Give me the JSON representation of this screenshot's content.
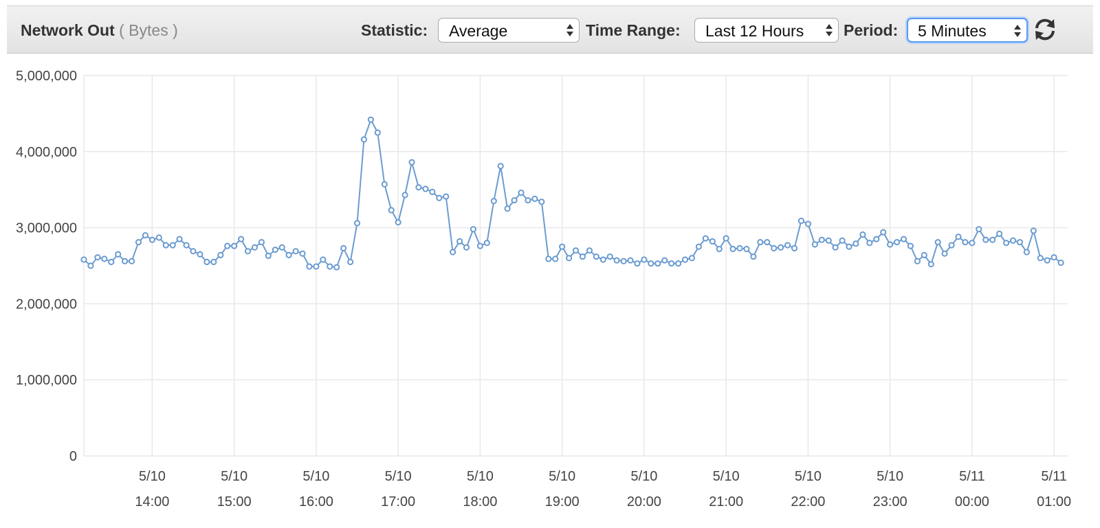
{
  "header": {
    "metric": "Network Out",
    "unit": "( Bytes )",
    "statistic_label": "Statistic:",
    "statistic_value": "Average",
    "time_range_label": "Time Range:",
    "time_range_value": "Last 12 Hours",
    "period_label": "Period:",
    "period_value": "5 Minutes",
    "refresh_icon": "refresh-icon"
  },
  "colors": {
    "line": "#6a9bd0",
    "grid": "#e8e8e8",
    "focus": "#5b9bf0"
  },
  "chart_data": {
    "type": "line",
    "title": "Network Out ( Bytes )",
    "ylabel": "",
    "xlabel": "",
    "ylim": [
      0,
      5000000
    ],
    "yticks": [
      0,
      1000000,
      2000000,
      3000000,
      4000000,
      5000000
    ],
    "ytick_labels": [
      "0",
      "1,000,000",
      "2,000,000",
      "3,000,000",
      "4,000,000",
      "5,000,000"
    ],
    "x_start": "5/10 13:10",
    "x_end": "5/11 01:10",
    "x_interval": "5 Minutes",
    "xticks": [
      {
        "date": "5/10",
        "time": "14:00"
      },
      {
        "date": "5/10",
        "time": "15:00"
      },
      {
        "date": "5/10",
        "time": "16:00"
      },
      {
        "date": "5/10",
        "time": "17:00"
      },
      {
        "date": "5/10",
        "time": "18:00"
      },
      {
        "date": "5/10",
        "time": "19:00"
      },
      {
        "date": "5/10",
        "time": "20:00"
      },
      {
        "date": "5/10",
        "time": "21:00"
      },
      {
        "date": "5/10",
        "time": "22:00"
      },
      {
        "date": "5/10",
        "time": "23:00"
      },
      {
        "date": "5/11",
        "time": "00:00"
      },
      {
        "date": "5/11",
        "time": "01:00"
      }
    ],
    "grid": true,
    "legend": "none",
    "series": [
      {
        "values": [
          2580000,
          2500000,
          2610000,
          2590000,
          2550000,
          2650000,
          2560000,
          2560000,
          2810000,
          2900000,
          2840000,
          2870000,
          2770000,
          2770000,
          2850000,
          2770000,
          2690000,
          2650000,
          2550000,
          2550000,
          2640000,
          2760000,
          2760000,
          2850000,
          2690000,
          2740000,
          2810000,
          2630000,
          2710000,
          2740000,
          2640000,
          2690000,
          2660000,
          2490000,
          2490000,
          2580000,
          2490000,
          2480000,
          2730000,
          2550000,
          3060000,
          4160000,
          4420000,
          4250000,
          3570000,
          3230000,
          3070000,
          3430000,
          3860000,
          3530000,
          3510000,
          3470000,
          3390000,
          3410000,
          2680000,
          2820000,
          2740000,
          2980000,
          2760000,
          2800000,
          3350000,
          3810000,
          3250000,
          3360000,
          3460000,
          3360000,
          3380000,
          3340000,
          2590000,
          2590000,
          2750000,
          2600000,
          2700000,
          2620000,
          2700000,
          2620000,
          2580000,
          2620000,
          2570000,
          2560000,
          2570000,
          2530000,
          2580000,
          2530000,
          2530000,
          2570000,
          2530000,
          2530000,
          2580000,
          2600000,
          2750000,
          2860000,
          2820000,
          2720000,
          2860000,
          2720000,
          2730000,
          2720000,
          2620000,
          2810000,
          2810000,
          2730000,
          2740000,
          2770000,
          2730000,
          3090000,
          3050000,
          2780000,
          2840000,
          2830000,
          2740000,
          2830000,
          2750000,
          2790000,
          2910000,
          2800000,
          2850000,
          2940000,
          2780000,
          2810000,
          2850000,
          2760000,
          2560000,
          2640000,
          2520000,
          2810000,
          2660000,
          2770000,
          2880000,
          2810000,
          2800000,
          2980000,
          2840000,
          2840000,
          2920000,
          2800000,
          2830000,
          2810000,
          2680000,
          2960000,
          2600000,
          2570000,
          2610000,
          2540000
        ]
      }
    ]
  }
}
